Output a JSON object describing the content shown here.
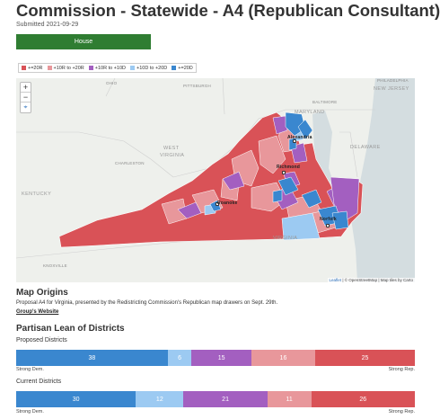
{
  "header": {
    "title": "Commission - Statewide - A4 (Republican Consultant)",
    "submitted": "Submitted 2021-09-29",
    "house_button": "House"
  },
  "legend": {
    "items": [
      {
        "label": "+=20R",
        "color": "#d95257"
      },
      {
        "label": "+10R to +20R",
        "color": "#e8979b"
      },
      {
        "label": "+10R to +10D",
        "color": "#a35fc0"
      },
      {
        "label": "+10D to +20D",
        "color": "#9ccaf2"
      },
      {
        "label": "+=20D",
        "color": "#3a87cf"
      }
    ]
  },
  "map": {
    "zoom_in": "+",
    "zoom_out": "−",
    "locate": "⌖",
    "attribution_leaflet": "Leaflet",
    "attribution_rest": " | © OpenStreetMap | Map tiles by Carto",
    "places": {
      "ohio": "OHIO",
      "maryland": "MARYLAND",
      "new_jersey": "NEW JERSEY",
      "delaware": "DELAWARE",
      "west_virginia_1": "WEST",
      "west_virginia_2": "VIRGINIA",
      "kentucky": "KENTUCKY",
      "virginia": "VIRGINIA",
      "pittsburgh": "PITTSBURGH",
      "philadelphia": "PHILADELPHIA",
      "baltimore": "BALTIMORE",
      "charleston": "CHARLESTON",
      "richmond": "Richmond",
      "roanoke": "Roanoke",
      "alexandria": "Alexandria",
      "norfolk": "Norfolk",
      "knoxville": "KNOXVILLE"
    }
  },
  "map_origins": {
    "heading": "Map Origins",
    "text": "Proposal A4 for Virginia, presented by the Redistricting Commission's Republican map drawers on Sept. 29th.",
    "link": "Group's Website"
  },
  "lean": {
    "heading": "Partisan Lean of Districts",
    "proposed_label": "Proposed Districts",
    "current_label": "Current Districts",
    "strong_dem": "Strong Dem.",
    "strong_rep": "Strong Rep.",
    "proposed": [
      {
        "value": 38,
        "label": "38",
        "color": "#3a87cf"
      },
      {
        "value": 6,
        "label": "6",
        "color": "#9ccaf2"
      },
      {
        "value": 15,
        "label": "15",
        "color": "#a35fc0"
      },
      {
        "value": 16,
        "label": "16",
        "color": "#e8979b"
      },
      {
        "value": 25,
        "label": "25",
        "color": "#d95257"
      }
    ],
    "current": [
      {
        "value": 30,
        "label": "30",
        "color": "#3a87cf"
      },
      {
        "value": 12,
        "label": "12",
        "color": "#9ccaf2"
      },
      {
        "value": 21,
        "label": "21",
        "color": "#a35fc0"
      },
      {
        "value": 11,
        "label": "11",
        "color": "#e8979b"
      },
      {
        "value": 26,
        "label": "26",
        "color": "#d95257"
      }
    ]
  }
}
